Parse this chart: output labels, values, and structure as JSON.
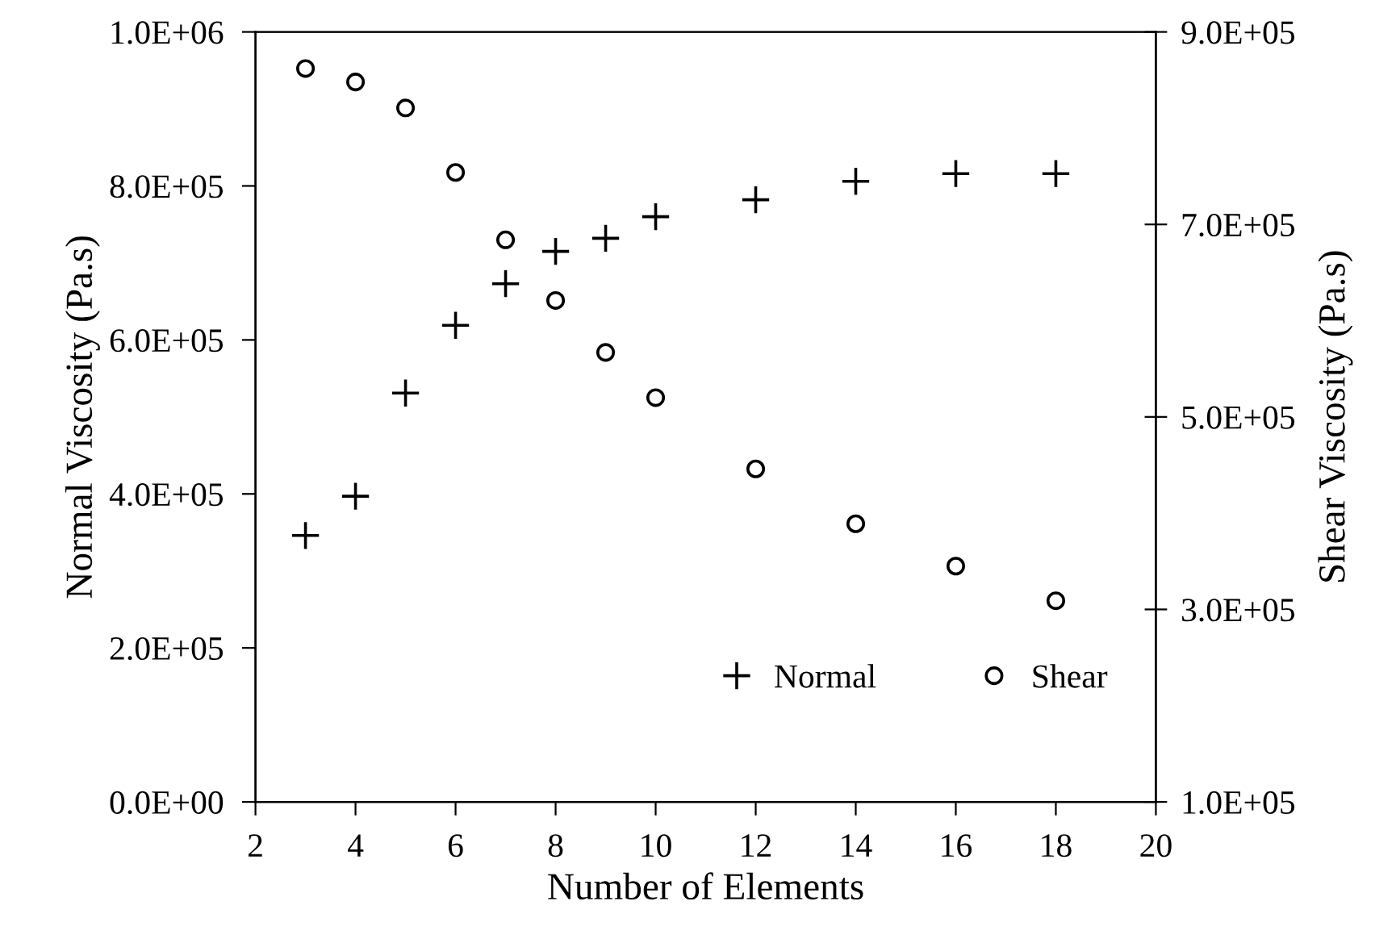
{
  "chart_data": {
    "type": "scatter",
    "xlabel": "Number of Elements",
    "ylabel": "Normal Viscosity (Pa.s)",
    "y2label": "Shear Viscosity (Pa.s)",
    "x": [
      3,
      4,
      5,
      6,
      7,
      8,
      9,
      10,
      12,
      14,
      16,
      18
    ],
    "series": [
      {
        "name": "Normal",
        "color": "#000000",
        "marker": "cross",
        "values": [
          346000,
          397000,
          531000,
          619000,
          673000,
          715000,
          732000,
          760000,
          782000,
          806000,
          816000,
          816000
        ]
      },
      {
        "name": "Shear",
        "color": "#000000",
        "marker": "circle",
        "axis": "y2",
        "values": [
          862000,
          848000,
          821000,
          754000,
          684000,
          621000,
          567000,
          520000,
          446000,
          389000,
          345000,
          309000
        ]
      }
    ],
    "xlim": [
      2,
      20
    ],
    "xticks": [
      2,
      4,
      6,
      8,
      10,
      12,
      14,
      16,
      18,
      20
    ],
    "ylim": [
      0,
      1000000
    ],
    "yticks": [
      {
        "value": 0,
        "label": "0.0E+00"
      },
      {
        "value": 200000,
        "label": "2.0E+05"
      },
      {
        "value": 400000,
        "label": "4.0E+05"
      },
      {
        "value": 600000,
        "label": "6.0E+05"
      },
      {
        "value": 800000,
        "label": "8.0E+05"
      },
      {
        "value": 1000000,
        "label": "1.0E+06"
      }
    ],
    "y2lim": [
      100000,
      900000
    ],
    "y2ticks": [
      {
        "value": 100000,
        "label": "1.0E+05"
      },
      {
        "value": 300000,
        "label": "3.0E+05"
      },
      {
        "value": 500000,
        "label": "5.0E+05"
      },
      {
        "value": 700000,
        "label": "7.0E+05"
      },
      {
        "value": 900000,
        "label": "9.0E+05"
      }
    ],
    "grid": false,
    "legend": "bottom right"
  }
}
